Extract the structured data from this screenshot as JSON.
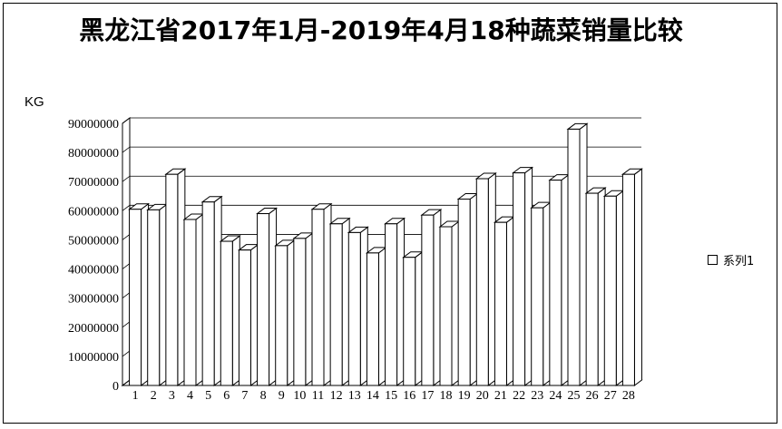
{
  "chart_data": {
    "type": "bar",
    "title": "黑龙江省2017年1月-2019年4月18种蔬菜销量比较",
    "ylabel": "KG",
    "xlabel": "",
    "ylim": [
      0,
      90000000
    ],
    "yticks": [
      "0",
      "10000000",
      "20000000",
      "30000000",
      "40000000",
      "50000000",
      "60000000",
      "70000000",
      "80000000",
      "90000000"
    ],
    "categories": [
      "1",
      "2",
      "3",
      "4",
      "5",
      "6",
      "7",
      "8",
      "9",
      "10",
      "11",
      "12",
      "13",
      "14",
      "15",
      "16",
      "17",
      "18",
      "19",
      "20",
      "21",
      "22",
      "23",
      "24",
      "25",
      "26",
      "27",
      "28"
    ],
    "series": [
      {
        "name": "系列1",
        "values": [
          60500000,
          60300000,
          72500000,
          57000000,
          63000000,
          49500000,
          46500000,
          59000000,
          48000000,
          50500000,
          60500000,
          55500000,
          52500000,
          45500000,
          55500000,
          44000000,
          58500000,
          54500000,
          64000000,
          71000000,
          56000000,
          73000000,
          61000000,
          70500000,
          88000000,
          66000000,
          65000000,
          72500000
        ]
      }
    ],
    "grid": true,
    "legend": "right"
  }
}
